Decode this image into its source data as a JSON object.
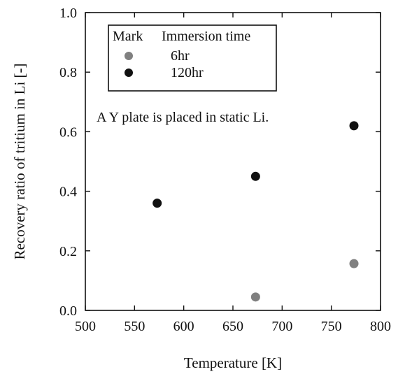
{
  "chart_data": {
    "type": "scatter",
    "xlabel": "Temperature [K]",
    "ylabel": "Recovery ratio of tritium in Li [-]",
    "xlim": [
      500,
      800
    ],
    "ylim": [
      0.0,
      1.0
    ],
    "x_ticks": [
      "500",
      "550",
      "600",
      "650",
      "700",
      "750",
      "800"
    ],
    "y_ticks": [
      "0.0",
      "0.2",
      "0.4",
      "0.6",
      "0.8",
      "1.0"
    ],
    "x_tick_values": [
      500,
      550,
      600,
      650,
      700,
      750,
      800
    ],
    "y_tick_values": [
      0.0,
      0.2,
      0.4,
      0.6,
      0.8,
      1.0
    ],
    "grid": false,
    "legend": {
      "placement": "top-left",
      "header_mark": "Mark",
      "header_label": "Immersion time"
    },
    "series": [
      {
        "name": "6hr",
        "color": "#808080",
        "points": [
          {
            "x": 673,
            "y": 0.045
          },
          {
            "x": 773,
            "y": 0.157
          }
        ]
      },
      {
        "name": "120hr",
        "color": "#111111",
        "points": [
          {
            "x": 573,
            "y": 0.36
          },
          {
            "x": 673,
            "y": 0.45
          },
          {
            "x": 773,
            "y": 0.62
          }
        ]
      }
    ],
    "annotation": "A Y plate is placed in static Li."
  }
}
